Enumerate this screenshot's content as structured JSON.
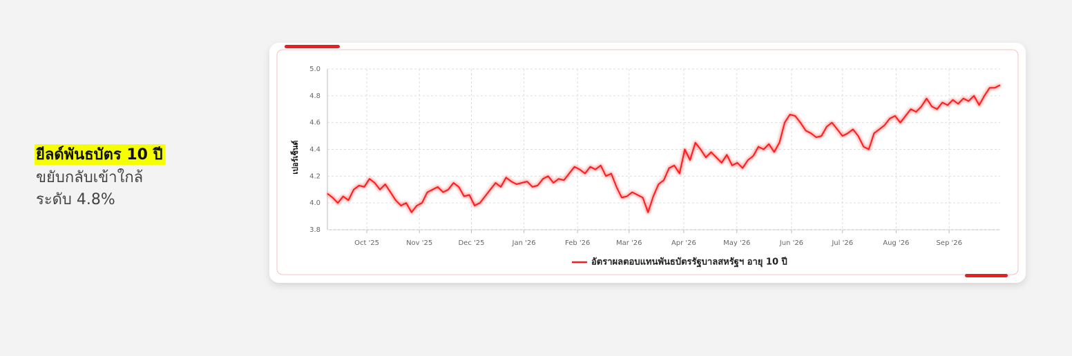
{
  "side_text": {
    "highlight": "ยีลด์พันธบัตร 10 ปี",
    "lines": [
      "ขยับกลับเข้าใกล้",
      "ระดับ 4.8%"
    ]
  },
  "chart_data": {
    "type": "line",
    "y_label": "เปอร์เซ็นต์",
    "grid": true,
    "legend": "bottom",
    "ylim": [
      3.8,
      5.0
    ],
    "yticks": [
      3.8,
      {
        "value": 4.0,
        "label": "4.0"
      },
      4.2,
      4.4,
      4.6,
      4.8,
      {
        "value": 5.0,
        "label": "5.0"
      }
    ],
    "xlim": [
      0,
      128
    ],
    "xticks": [
      {
        "value": 7.5,
        "label": "Oct '25"
      },
      {
        "value": 17.5,
        "label": "Nov '25"
      },
      {
        "value": 27.4,
        "label": "Dec '25"
      },
      {
        "value": 37.4,
        "label": "Jan '26"
      },
      {
        "value": 47.6,
        "label": "Feb '26"
      },
      {
        "value": 57.4,
        "label": "Mar '26"
      },
      {
        "value": 67.8,
        "label": "Apr '26"
      },
      {
        "value": 77.9,
        "label": "May '26"
      },
      {
        "value": 88.3,
        "label": "Jun '26"
      },
      {
        "value": 98.0,
        "label": "Jul '26"
      },
      {
        "value": 108.2,
        "label": "Aug '26"
      },
      {
        "value": 118.3,
        "label": "Sep '26"
      }
    ],
    "series": [
      {
        "name": "อัตราผลตอบแทนพันธบัตรรัฐบาลสหรัฐฯ อายุ 10 ปี",
        "color": "#ff1a1a",
        "values": [
          4.07,
          4.04,
          4.0,
          4.05,
          4.02,
          4.1,
          4.13,
          4.12,
          4.18,
          4.15,
          4.1,
          4.14,
          4.08,
          4.02,
          3.98,
          4.0,
          3.93,
          3.98,
          4.0,
          4.08,
          4.1,
          4.12,
          4.08,
          4.1,
          4.15,
          4.12,
          4.05,
          4.06,
          3.98,
          4.0,
          4.05,
          4.1,
          4.15,
          4.12,
          4.19,
          4.16,
          4.14,
          4.15,
          4.16,
          4.12,
          4.13,
          4.18,
          4.2,
          4.15,
          4.18,
          4.17,
          4.22,
          4.27,
          4.25,
          4.22,
          4.27,
          4.25,
          4.28,
          4.2,
          4.22,
          4.12,
          4.04,
          4.05,
          4.08,
          4.06,
          4.04,
          3.93,
          4.05,
          4.14,
          4.17,
          4.26,
          4.28,
          4.22,
          4.4,
          4.32,
          4.45,
          4.4,
          4.34,
          4.38,
          4.34,
          4.3,
          4.36,
          4.28,
          4.3,
          4.26,
          4.32,
          4.35,
          4.42,
          4.4,
          4.44,
          4.38,
          4.45,
          4.6,
          4.66,
          4.65,
          4.6,
          4.54,
          4.52,
          4.49,
          4.5,
          4.57,
          4.6,
          4.55,
          4.5,
          4.52,
          4.55,
          4.5,
          4.42,
          4.4,
          4.52,
          4.55,
          4.58,
          4.63,
          4.65,
          4.6,
          4.65,
          4.7,
          4.68,
          4.72,
          4.78,
          4.72,
          4.7,
          4.75,
          4.73,
          4.77,
          4.74,
          4.78,
          4.76,
          4.8,
          4.73,
          4.8,
          4.86,
          4.86,
          4.88
        ]
      }
    ]
  }
}
